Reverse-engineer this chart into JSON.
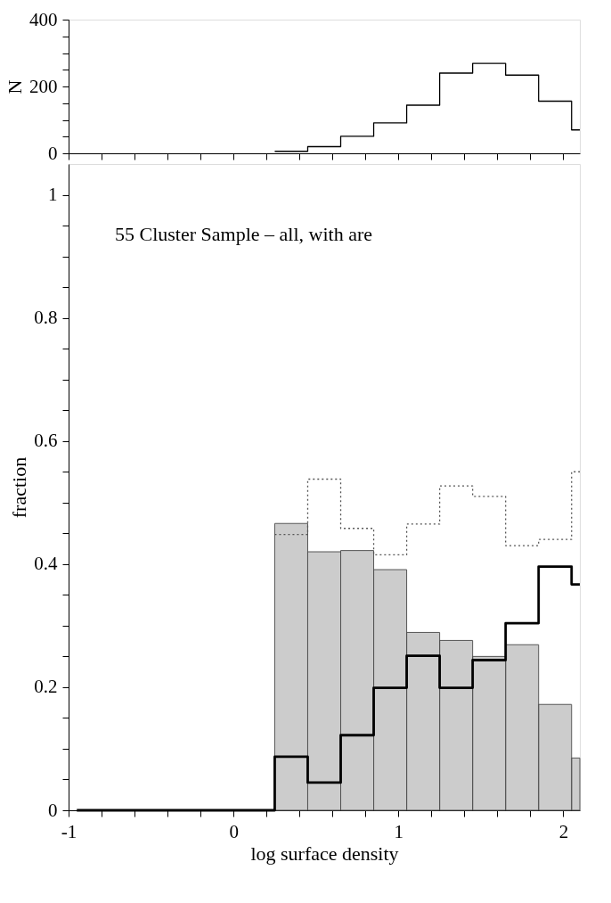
{
  "chart_data": [
    {
      "type": "step",
      "ylabel": "N",
      "xlim": [
        -1,
        2.1
      ],
      "ylim": [
        0,
        400
      ],
      "xticks": [
        -1,
        {
          "value": -0.8,
          "label": null
        },
        {
          "value": -0.6,
          "label": null
        },
        {
          "value": -0.4,
          "label": null
        },
        {
          "value": -0.2,
          "label": null
        },
        0,
        {
          "value": 0.2,
          "label": null
        },
        {
          "value": 0.4,
          "label": null
        },
        {
          "value": 0.6,
          "label": null
        },
        {
          "value": 0.8,
          "label": null
        },
        1,
        {
          "value": 1.2,
          "label": null
        },
        {
          "value": 1.4,
          "label": null
        },
        {
          "value": 1.6,
          "label": null
        },
        {
          "value": 1.8,
          "label": null
        },
        2
      ],
      "yticks": [
        0,
        {
          "value": 50,
          "label": null
        },
        {
          "value": 100,
          "label": null
        },
        {
          "value": 150,
          "label": null
        },
        200,
        {
          "value": 250,
          "label": null
        },
        {
          "value": 300,
          "label": null
        },
        {
          "value": 350,
          "label": null
        },
        400
      ],
      "tick_labels": "y",
      "grid": false,
      "series": [
        {
          "color": "#000000",
          "line_style": "solid",
          "x": [
            0.25,
            0.45,
            0.65,
            0.85,
            1.05,
            1.25,
            1.45,
            1.65,
            1.85,
            2.05,
            2.1
          ],
          "values": [
            6,
            20,
            51,
            91,
            144,
            240,
            269,
            234,
            156,
            70,
            70
          ]
        }
      ]
    },
    {
      "type": "histogram",
      "xlabel": "log surface density",
      "ylabel": "fraction",
      "xlim": [
        -1,
        2.1
      ],
      "ylim": [
        0,
        1.05
      ],
      "xticks": [
        -1,
        {
          "value": -0.8,
          "label": null
        },
        {
          "value": -0.6,
          "label": null
        },
        {
          "value": -0.4,
          "label": null
        },
        {
          "value": -0.2,
          "label": null
        },
        0,
        {
          "value": 0.2,
          "label": null
        },
        {
          "value": 0.4,
          "label": null
        },
        {
          "value": 0.6,
          "label": null
        },
        {
          "value": 0.8,
          "label": null
        },
        1,
        {
          "value": 1.2,
          "label": null
        },
        {
          "value": 1.4,
          "label": null
        },
        {
          "value": 1.6,
          "label": null
        },
        {
          "value": 1.8,
          "label": null
        },
        2
      ],
      "yticks": [
        0,
        {
          "value": 0.05,
          "label": null
        },
        {
          "value": 0.1,
          "label": null
        },
        {
          "value": 0.15,
          "label": null
        },
        0.2,
        {
          "value": 0.25,
          "label": null
        },
        {
          "value": 0.3,
          "label": null
        },
        {
          "value": 0.35,
          "label": null
        },
        0.4,
        {
          "value": 0.45,
          "label": null
        },
        {
          "value": 0.5,
          "label": null
        },
        {
          "value": 0.55,
          "label": null
        },
        0.6,
        {
          "value": 0.65,
          "label": null
        },
        {
          "value": 0.7,
          "label": null
        },
        {
          "value": 0.75,
          "label": null
        },
        0.8,
        {
          "value": 0.85,
          "label": null
        },
        {
          "value": 0.9,
          "label": null
        },
        {
          "value": 0.95,
          "label": null
        },
        1
      ],
      "grid": false,
      "annotations": [
        "55 Cluster Sample – all, with are"
      ],
      "bins": [
        0.25,
        0.45,
        0.65,
        0.85,
        1.05,
        1.25,
        1.45,
        1.65,
        1.85,
        2.05,
        2.1
      ],
      "series": [
        {
          "color": "#555555",
          "line_style": "solid",
          "values": [
            0.466,
            0.42,
            0.422,
            0.391,
            0.289,
            0.276,
            0.25,
            0.269,
            0.172,
            0.085
          ]
        },
        {
          "type": "step",
          "color": "#555555",
          "line_style": "dotted",
          "x": [
            0.25,
            0.45,
            0.65,
            0.85,
            1.05,
            1.25,
            1.45,
            1.65,
            1.85,
            2.05,
            2.1
          ],
          "values": [
            0.448,
            0.538,
            0.458,
            0.415,
            0.465,
            0.527,
            0.51,
            0.43,
            0.44,
            0.55,
            0.55
          ]
        },
        {
          "type": "step",
          "color": "#000000",
          "line_style": "solid",
          "x": [
            -0.95,
            0.25,
            0.45,
            0.65,
            0.85,
            1.05,
            1.25,
            1.45,
            1.65,
            1.85,
            2.05,
            2.1
          ],
          "values": [
            0,
            0.087,
            0.045,
            0.122,
            0.199,
            0.251,
            0.199,
            0.244,
            0.304,
            0.396,
            0.367,
            0.367
          ]
        }
      ]
    }
  ]
}
